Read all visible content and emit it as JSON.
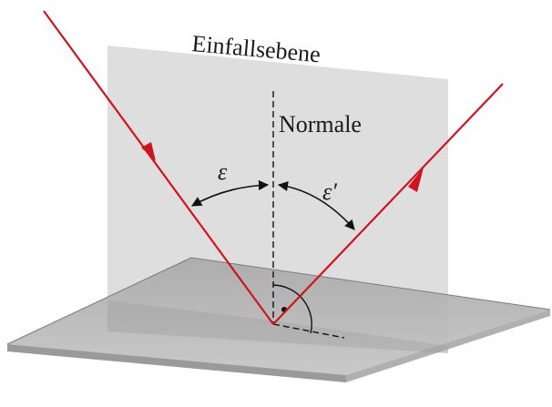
{
  "labels": {
    "plane": "Einfallsebene",
    "normal": "Normale",
    "angle_incidence": "ε",
    "angle_reflection": "ε′"
  },
  "colors": {
    "ray": "#d0141e",
    "plane_of_incidence": "#d6d6d6",
    "surface_top": "#b9b9b9",
    "surface_edge": "#8a8a8a",
    "lines": "#111111",
    "background": "#ffffff"
  }
}
